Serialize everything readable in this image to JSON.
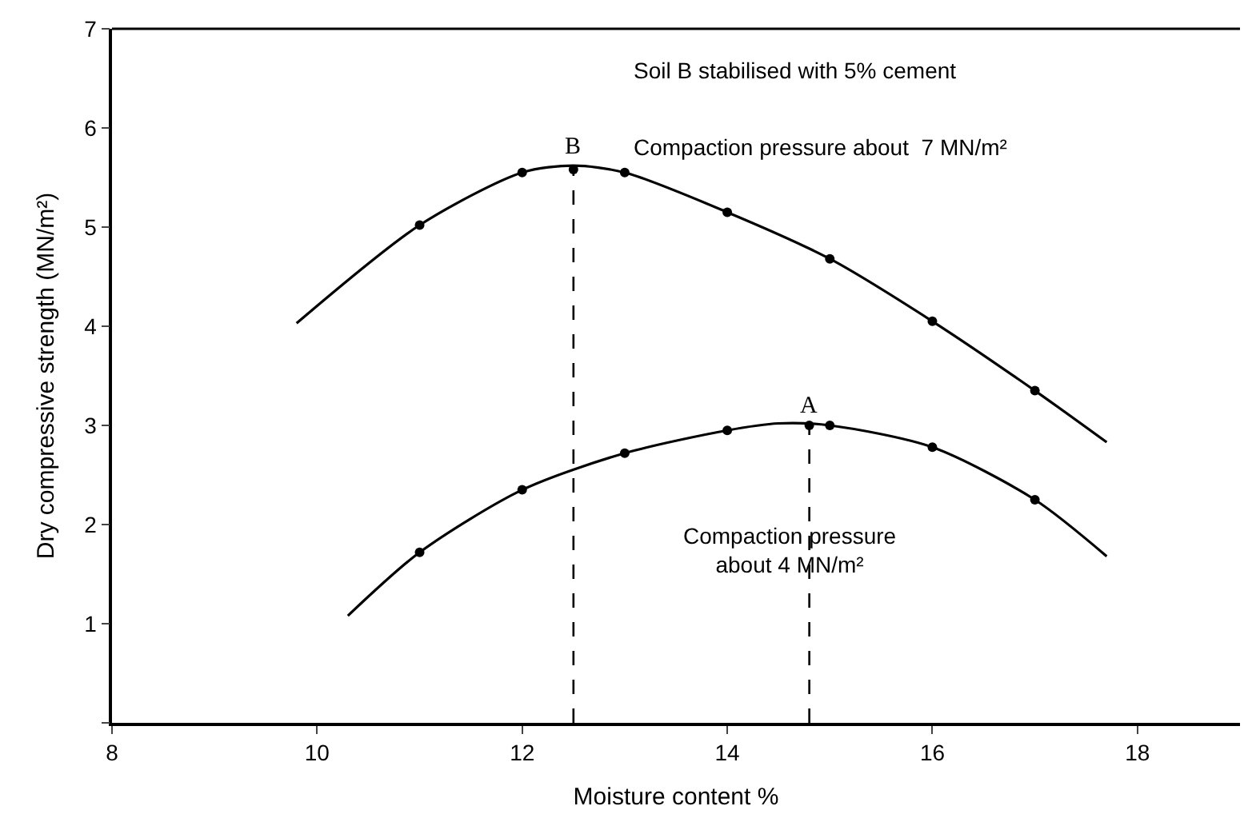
{
  "chart_data": {
    "type": "line",
    "xlabel": "Moisture content %",
    "ylabel": "Dry compressive strength (MN/m²)",
    "xlim": [
      8,
      19
    ],
    "xticks": [
      8,
      10,
      12,
      14,
      16,
      18
    ],
    "ylim": [
      0,
      7
    ],
    "yticks": [
      {
        "value": 0,
        "label": null
      },
      1,
      2,
      3,
      4,
      5,
      6,
      7
    ],
    "series": [
      {
        "color": "#000000",
        "marker": "none",
        "x": [
          9.8,
          11,
          12,
          12.5,
          13,
          14,
          15,
          16,
          17,
          17.7
        ],
        "values": [
          4.03,
          5.02,
          5.55,
          5.62,
          5.55,
          5.15,
          4.68,
          4.05,
          3.35,
          2.83
        ]
      },
      {
        "type": "scatter",
        "color": "#000000",
        "marker": "circle",
        "x": [
          11,
          12,
          12.5,
          13,
          14,
          15,
          16,
          17
        ],
        "values": [
          5.02,
          5.55,
          5.58,
          5.55,
          5.15,
          4.68,
          4.05,
          3.35
        ]
      },
      {
        "color": "#000000",
        "marker": "none",
        "x": [
          10.3,
          11,
          12,
          13,
          14,
          14.5,
          15,
          16,
          17,
          17.7
        ],
        "values": [
          1.08,
          1.72,
          2.35,
          2.72,
          2.95,
          3.02,
          3.0,
          2.78,
          2.25,
          1.68
        ]
      },
      {
        "type": "scatter",
        "color": "#000000",
        "marker": "circle",
        "x": [
          11,
          12,
          13,
          14,
          14.8,
          15,
          16,
          17
        ],
        "values": [
          1.72,
          2.35,
          2.72,
          2.95,
          3.0,
          3.0,
          2.78,
          2.25
        ]
      }
    ],
    "ref_lines": [
      {
        "axis": "x",
        "value": 12.5,
        "label": "B",
        "color": "#000000",
        "line_style": "dashed"
      },
      {
        "axis": "x",
        "value": 14.8,
        "label": "A",
        "color": "#000000",
        "line_style": "dashed"
      }
    ],
    "annotations": [
      "Soil B stabilised with 5% cement",
      "Compaction pressure about  7 MN/m²",
      "Compaction pressure\nabout 4 MN/m²"
    ]
  }
}
